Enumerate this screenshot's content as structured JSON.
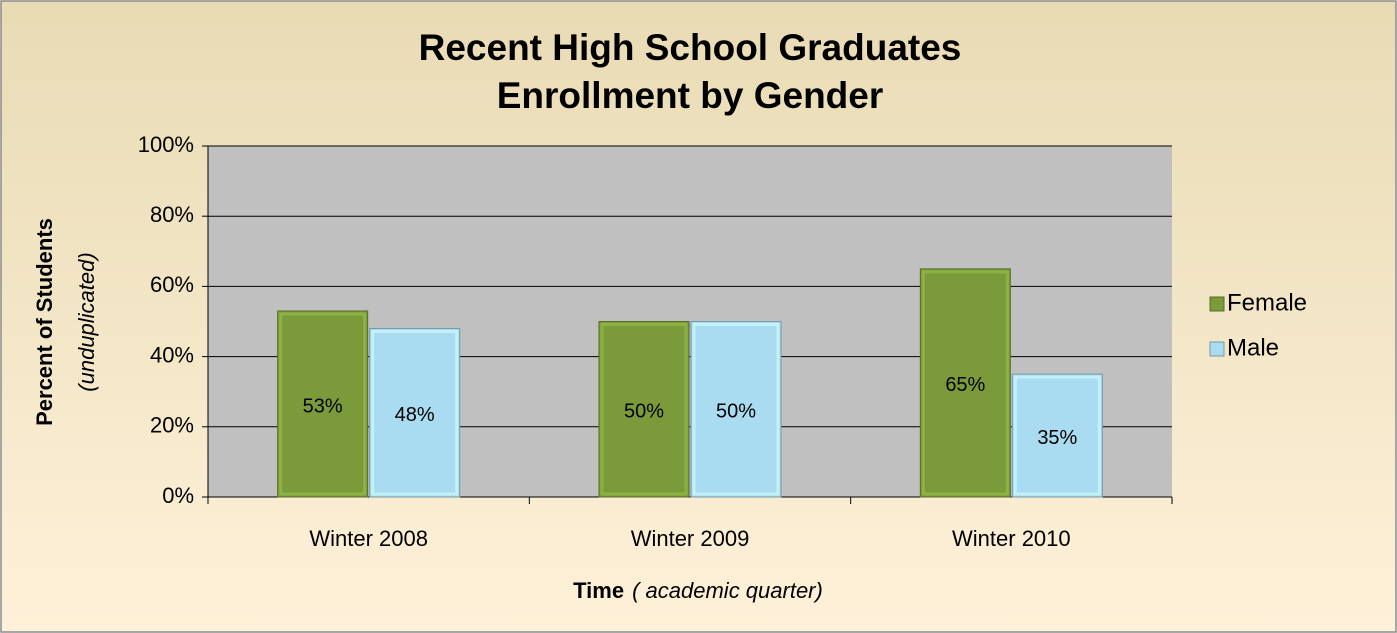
{
  "chart_data": {
    "type": "bar",
    "title": [
      "Recent High School Graduates",
      "Enrollment by Gender"
    ],
    "y_label": [
      "Percent of Students",
      "(unduplicated)"
    ],
    "x_label": [
      "Time",
      "( academic quarter)"
    ],
    "categories": [
      "Winter 2008",
      "Winter 2009",
      "Winter 2010"
    ],
    "series": [
      {
        "name": "Female",
        "color": "#7b9b3b",
        "values": [
          53,
          50,
          65
        ],
        "value_labels": [
          "53%",
          "50%",
          "65%"
        ]
      },
      {
        "name": "Male",
        "color": "#a9dcf0",
        "values": [
          48,
          50,
          35
        ],
        "value_labels": [
          "48%",
          "50%",
          "35%"
        ]
      }
    ],
    "ylim": [
      0,
      100
    ],
    "yticks": [
      {
        "value": 0,
        "label": "0%"
      },
      {
        "value": 20,
        "label": "20%"
      },
      {
        "value": 40,
        "label": "40%"
      },
      {
        "value": 60,
        "label": "60%"
      },
      {
        "value": 80,
        "label": "80%"
      },
      {
        "value": 100,
        "label": "100%"
      }
    ],
    "grid": true,
    "legend": "right"
  }
}
